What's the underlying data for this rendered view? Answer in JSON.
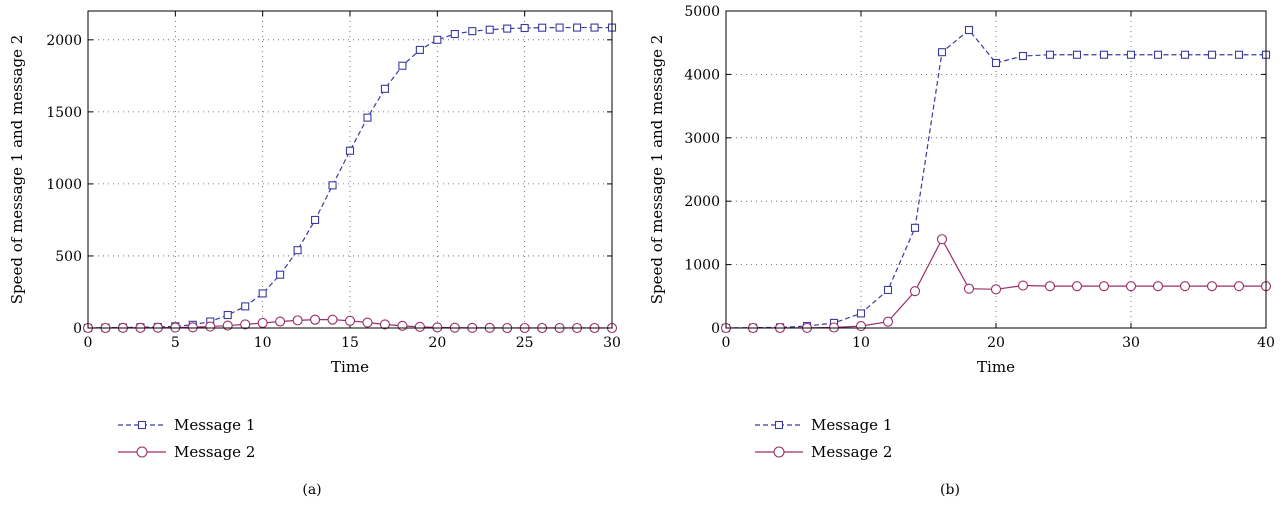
{
  "chart_data": [
    {
      "type": "line",
      "caption": "(a)",
      "xlabel": "Time",
      "ylabel": "Speed of message 1 and message 2",
      "xlim": [
        0,
        30
      ],
      "ylim": [
        0,
        2200
      ],
      "xticks": [
        0,
        5,
        10,
        15,
        20,
        25,
        30
      ],
      "yticks": [
        0,
        500,
        1000,
        1500,
        2000
      ],
      "grid": true,
      "legend_position": "bottom-left below plot",
      "series": [
        {
          "name": "Message 1",
          "color": "#3a3aa0",
          "line_style": "dashed",
          "marker": "square",
          "x": [
            0,
            1,
            2,
            3,
            4,
            5,
            6,
            7,
            8,
            9,
            10,
            11,
            12,
            13,
            14,
            15,
            16,
            17,
            18,
            19,
            20,
            21,
            22,
            23,
            24,
            25,
            26,
            27,
            28,
            29,
            30
          ],
          "y": [
            0,
            2,
            3,
            5,
            7,
            12,
            22,
            45,
            90,
            150,
            240,
            370,
            540,
            750,
            990,
            1230,
            1460,
            1660,
            1820,
            1930,
            2000,
            2040,
            2060,
            2070,
            2078,
            2082,
            2084,
            2085,
            2085,
            2085,
            2085
          ]
        },
        {
          "name": "Message 2",
          "color": "#9b2d6a",
          "line_style": "solid",
          "marker": "circle",
          "x": [
            0,
            1,
            2,
            3,
            4,
            5,
            6,
            7,
            8,
            9,
            10,
            11,
            12,
            13,
            14,
            15,
            16,
            17,
            18,
            19,
            20,
            21,
            22,
            23,
            24,
            25,
            26,
            27,
            28,
            29,
            30
          ],
          "y": [
            0,
            0,
            1,
            1,
            2,
            3,
            5,
            10,
            17,
            25,
            35,
            45,
            53,
            58,
            58,
            50,
            38,
            25,
            15,
            8,
            4,
            2,
            1,
            1,
            0,
            0,
            0,
            0,
            0,
            0,
            0
          ]
        }
      ]
    },
    {
      "type": "line",
      "caption": "(b)",
      "xlabel": "Time",
      "ylabel": "Speed of message 1 and message 2",
      "xlim": [
        0,
        40
      ],
      "ylim": [
        0,
        5000
      ],
      "xticks": [
        0,
        10,
        20,
        30,
        40
      ],
      "yticks": [
        0,
        1000,
        2000,
        3000,
        4000,
        5000
      ],
      "grid": true,
      "legend_position": "bottom-left below plot",
      "series": [
        {
          "name": "Message 1",
          "color": "#3a3aa0",
          "line_style": "dashed",
          "marker": "square",
          "x": [
            0,
            2,
            4,
            6,
            8,
            10,
            12,
            14,
            16,
            18,
            20,
            22,
            24,
            26,
            28,
            30,
            32,
            34,
            36,
            38,
            40
          ],
          "y": [
            0,
            5,
            10,
            30,
            80,
            230,
            600,
            1580,
            4350,
            4700,
            4180,
            4290,
            4310,
            4310,
            4310,
            4310,
            4310,
            4310,
            4310,
            4310,
            4310
          ]
        },
        {
          "name": "Message 2",
          "color": "#9b2d6a",
          "line_style": "solid",
          "marker": "circle",
          "x": [
            0,
            2,
            4,
            6,
            8,
            10,
            12,
            14,
            16,
            18,
            20,
            22,
            24,
            26,
            28,
            30,
            32,
            34,
            36,
            38,
            40
          ],
          "y": [
            0,
            0,
            0,
            2,
            8,
            30,
            100,
            580,
            1400,
            620,
            610,
            670,
            660,
            660,
            660,
            660,
            660,
            660,
            660,
            660,
            660
          ]
        }
      ]
    }
  ]
}
